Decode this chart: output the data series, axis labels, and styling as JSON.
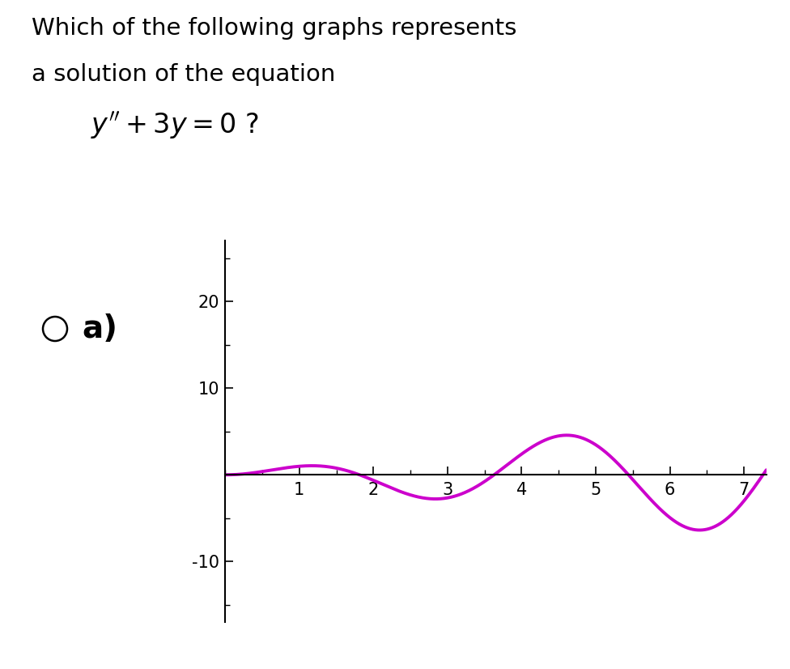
{
  "title_line1": "Which of the following graphs represents",
  "title_line2": "a solution of the equation",
  "label_letter": "a)",
  "curve_color": "#cc00cc",
  "curve_linewidth": 2.8,
  "x_min": 0,
  "x_max": 7.3,
  "y_min": -17,
  "y_max": 27,
  "x_ticks": [
    1,
    2,
    3,
    4,
    5,
    6,
    7
  ],
  "y_ticks": [
    -10,
    10,
    20
  ],
  "background_color": "#ffffff",
  "text_color": "#000000",
  "axis_color": "#000000",
  "title_fontsize": 21,
  "label_fontsize": 28,
  "tick_fontsize": 15,
  "curve_sqrt3": 1.7320508075688772
}
